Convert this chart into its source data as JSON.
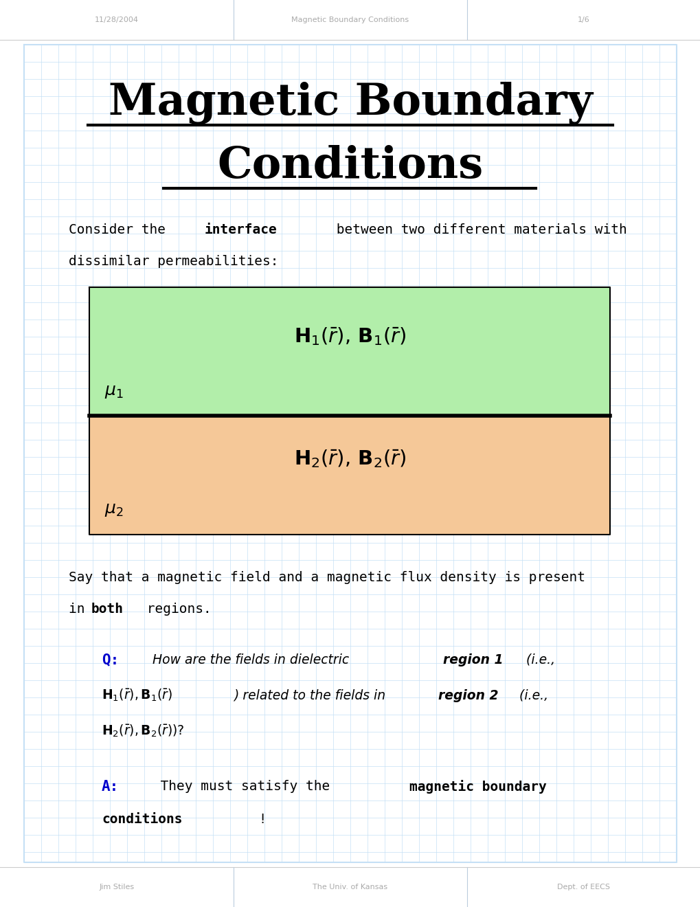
{
  "bg_color": "#ffffff",
  "grid_color": "#c5e0f5",
  "header_color": "#aaaaaa",
  "header_top_left": "11/28/2004",
  "header_top_center": "Magnetic Boundary Conditions",
  "header_top_right": "1/6",
  "footer_bottom_left": "Jim Stiles",
  "footer_bottom_center": "The Univ. of Kansas",
  "footer_bottom_right": "Dept. of EECS",
  "title_line1": "Magnetic Boundary",
  "title_line2": "Conditions",
  "green_box_color": "#b2eeaa",
  "orange_box_color": "#f5c898",
  "blue_color": "#0000cc",
  "black": "#000000",
  "header_sep_color": "#cccccc",
  "divider_color": "#bbccdd"
}
